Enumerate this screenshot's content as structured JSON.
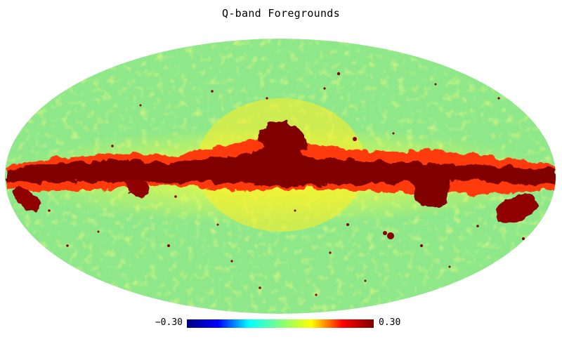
{
  "map": {
    "title": "Q-band Foregrounds",
    "projection": "mollweide",
    "colormap": "jet",
    "background_color": "#8ee88a"
  },
  "colorbar": {
    "min_label": "−0.30",
    "max_label": "0.30",
    "min_value": -0.3,
    "max_value": 0.3,
    "colors": [
      "#00007f",
      "#0000ff",
      "#00ffff",
      "#7fff7f",
      "#ffff00",
      "#ff0000",
      "#7f0000"
    ]
  }
}
